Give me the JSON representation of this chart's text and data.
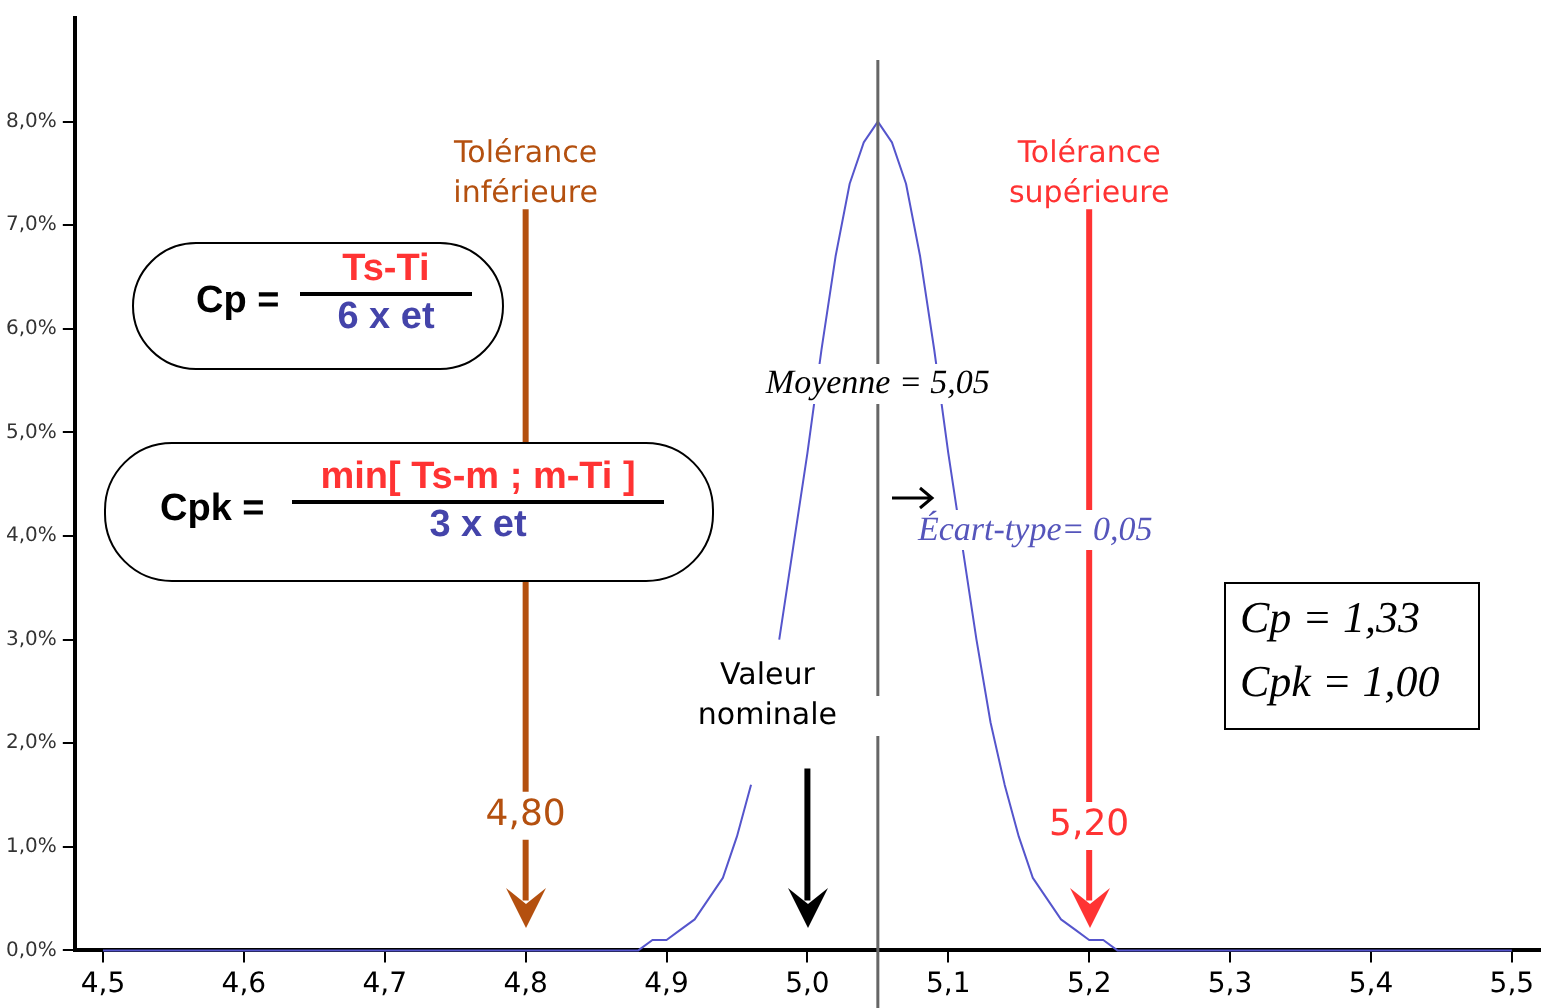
{
  "chart_data": {
    "type": "line",
    "xlim": [
      4.48,
      5.52
    ],
    "ylim": [
      0,
      9
    ],
    "xticks": [
      {
        "value": 4.5,
        "label": "4,5"
      },
      {
        "value": 4.6,
        "label": "4,6"
      },
      {
        "value": 4.7,
        "label": "4,7"
      },
      {
        "value": 4.8,
        "label": "4,8"
      },
      {
        "value": 4.9,
        "label": "4,9"
      },
      {
        "value": 5.0,
        "label": "5,0"
      },
      {
        "value": 5.1,
        "label": "5,1"
      },
      {
        "value": 5.2,
        "label": "5,2"
      },
      {
        "value": 5.3,
        "label": "5,3"
      },
      {
        "value": 5.4,
        "label": "5,4"
      },
      {
        "value": 5.5,
        "label": "5,5"
      }
    ],
    "yticks": [
      {
        "value": 0,
        "label": "0,0%"
      },
      {
        "value": 1,
        "label": "1,0%"
      },
      {
        "value": 2,
        "label": "2,0%"
      },
      {
        "value": 3,
        "label": "3,0%"
      },
      {
        "value": 4,
        "label": "4,0%"
      },
      {
        "value": 5,
        "label": "5,0%"
      },
      {
        "value": 6,
        "label": "6,0%"
      },
      {
        "value": 7,
        "label": "7,0%"
      },
      {
        "value": 8,
        "label": "8,0%"
      }
    ],
    "series": [
      {
        "color": "#5555cc",
        "x": [
          4.5,
          4.85,
          4.86,
          4.87,
          4.88,
          4.89,
          4.9,
          4.91,
          4.92,
          4.93,
          4.94,
          4.95,
          4.96,
          4.97,
          4.98,
          4.99,
          5.0,
          5.01,
          5.02,
          5.03,
          5.04,
          5.05,
          5.06,
          5.07,
          5.08,
          5.09,
          5.1,
          5.11,
          5.12,
          5.13,
          5.14,
          5.15,
          5.16,
          5.17,
          5.18,
          5.19,
          5.2,
          5.21,
          5.22,
          5.23,
          5.24,
          5.25,
          5.5
        ],
        "values": [
          0,
          0,
          0,
          0,
          0,
          0.1,
          0.1,
          0.2,
          0.3,
          0.5,
          0.7,
          1.1,
          1.6,
          null,
          3.0,
          3.9,
          4.8,
          5.8,
          6.7,
          7.4,
          7.8,
          8.0,
          7.8,
          7.4,
          6.7,
          5.8,
          4.8,
          3.9,
          3.0,
          2.2,
          1.6,
          1.1,
          0.7,
          0.5,
          0.3,
          0.2,
          0.1,
          0.1,
          0,
          0,
          0,
          0,
          0
        ]
      }
    ],
    "ref_lines": [
      {
        "axis": "x",
        "value": 5.05,
        "label": "Moyenne = 5,05",
        "color": "#666666"
      },
      {
        "axis": "x",
        "value": 4.8,
        "label": "Tolérance inférieure",
        "color": "#b4500f"
      },
      {
        "axis": "x",
        "value": 5.2,
        "label": "Tolérance supérieure",
        "color": "#ff3333"
      },
      {
        "axis": "x",
        "value": 5.0,
        "label": "Valeur nominale",
        "color": "#000000"
      }
    ],
    "annotations": [
      "Cp =",
      "Ts-Ti",
      "6 x et",
      "Cpk =",
      "min[ Ts-m ; m-Ti ]",
      "3 x et",
      "Écart-type= 0,05",
      "Cp = 1,33",
      "Cpk = 1,00",
      {
        "text": "4,80",
        "x": 4.8,
        "y": 1.3
      },
      {
        "text": "5,20",
        "x": 5.2,
        "y": 1.2
      }
    ],
    "grid": false,
    "legend": false,
    "marker": "none",
    "line_style": "solid"
  }
}
